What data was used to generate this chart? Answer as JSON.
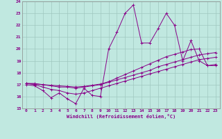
{
  "xlabel": "Windchill (Refroidissement éolien,°C)",
  "xlim": [
    -0.5,
    23.5
  ],
  "ylim": [
    15,
    24
  ],
  "xticks": [
    0,
    1,
    2,
    3,
    4,
    5,
    6,
    7,
    8,
    9,
    10,
    11,
    12,
    13,
    14,
    15,
    16,
    17,
    18,
    19,
    20,
    21,
    22,
    23
  ],
  "yticks": [
    15,
    16,
    17,
    18,
    19,
    20,
    21,
    22,
    23,
    24
  ],
  "bg_color": "#c0e8e0",
  "line_color": "#880088",
  "grid_color": "#a0c8c0",
  "line1_y": [
    17.0,
    16.9,
    16.5,
    15.9,
    16.3,
    15.8,
    15.4,
    16.7,
    16.1,
    16.0,
    20.0,
    21.4,
    23.0,
    23.7,
    20.5,
    20.5,
    21.7,
    23.0,
    22.0,
    19.0,
    20.7,
    19.0,
    18.6,
    18.7
  ],
  "line2_y": [
    17.1,
    17.0,
    16.8,
    16.6,
    16.5,
    16.3,
    16.2,
    16.3,
    16.5,
    16.7,
    16.9,
    17.1,
    17.3,
    17.5,
    17.7,
    17.9,
    18.1,
    18.3,
    18.5,
    18.7,
    18.9,
    19.1,
    19.2,
    19.3
  ],
  "line3_y": [
    17.1,
    17.1,
    17.0,
    16.9,
    16.8,
    16.8,
    16.7,
    16.8,
    16.9,
    17.0,
    17.2,
    17.4,
    17.6,
    17.8,
    18.0,
    18.2,
    18.5,
    18.7,
    18.9,
    19.1,
    19.3,
    19.5,
    19.6,
    19.7
  ],
  "line4_y": [
    17.1,
    17.05,
    17.0,
    16.95,
    16.9,
    16.85,
    16.8,
    16.85,
    16.95,
    17.05,
    17.25,
    17.55,
    17.85,
    18.15,
    18.45,
    18.75,
    19.05,
    19.35,
    19.55,
    19.75,
    19.95,
    20.0,
    18.6,
    18.6
  ]
}
